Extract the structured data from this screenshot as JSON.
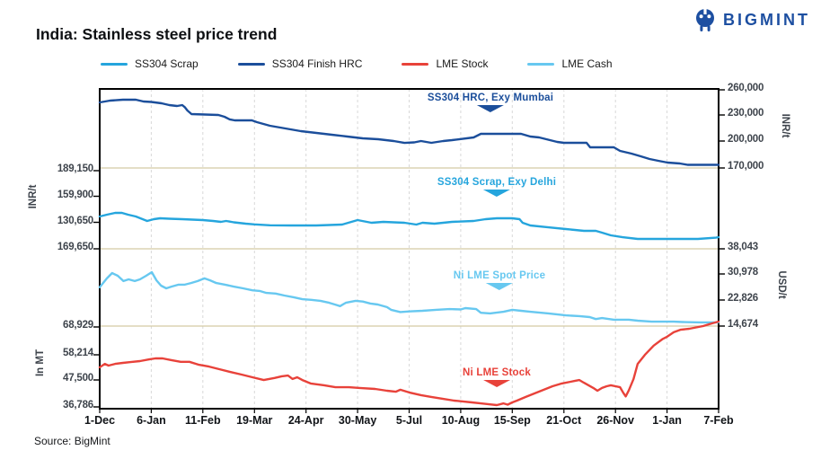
{
  "brand": {
    "name": "BIGMINT"
  },
  "title": "India: Stainless steel price trend",
  "source": "Source: BigMint",
  "colors": {
    "scrap": "#25a5dd",
    "hrc": "#1b4e9b",
    "stock": "#e8423a",
    "cash": "#67c8f0",
    "tan_gridline": "#d3cba4",
    "dashed_gridline": "#d8d8d8",
    "axis_text": "#3e444c"
  },
  "legend": [
    {
      "label": "SS304 Scrap",
      "color": "#25a5dd"
    },
    {
      "label": "SS304 Finish HRC",
      "color": "#1b4e9b"
    },
    {
      "label": "LME Stock",
      "color": "#e8423a"
    },
    {
      "label": "LME Cash",
      "color": "#67c8f0"
    }
  ],
  "chart_data": {
    "type": "line",
    "title": "India: Stainless steel price trend",
    "grid": {
      "vertical_dashed": true,
      "horizontal_tan_lines": 3
    },
    "x_tick_labels": [
      "1-Dec",
      "6-Jan",
      "11-Feb",
      "19-Mar",
      "24-Apr",
      "30-May",
      "5-Jul",
      "10-Aug",
      "15-Sep",
      "21-Oct",
      "26-Nov",
      "1-Jan",
      "7-Feb"
    ],
    "left_axis": {
      "ticks": [
        "189,150",
        "159,900",
        "130,650",
        "169,650",
        "68,929",
        "58,214",
        "47,500",
        "36,786"
      ],
      "unit_top": "INR/t",
      "unit_bottom": "In MT"
    },
    "right_axis": {
      "ticks": [
        "260,000",
        "230,000",
        "200,000",
        "170,000",
        "38,043",
        "30,978",
        "22,826",
        "14,674"
      ],
      "unit_top": "INR/t",
      "unit_bottom": "USD/t"
    },
    "axes": {
      "left_inr": {
        "unit": "INR/t",
        "side": "left",
        "tick_values": [
          189150,
          159900,
          130650
        ]
      },
      "left_mt": {
        "unit": "In MT",
        "side": "left",
        "tick_values": [
          68929,
          58214,
          47500,
          36786
        ]
      },
      "right_inr": {
        "unit": "INR/t",
        "side": "right",
        "tick_values": [
          260000,
          230000,
          200000,
          170000
        ]
      },
      "right_usd": {
        "unit": "USD/t",
        "side": "right",
        "tick_values": [
          38043,
          30978,
          22826,
          14674
        ]
      }
    },
    "annotations": [
      {
        "text": "SS304 HRC, Exy Mumbai",
        "color": "#1b4e9b"
      },
      {
        "text": "SS304 Scrap, Exy Delhi",
        "color": "#25a5dd"
      },
      {
        "text": "Ni LME Spot Price",
        "color": "#67c8f0"
      },
      {
        "text": "Ni LME Stock",
        "color": "#e8423a"
      }
    ],
    "series": [
      {
        "name": "SS304 Finish HRC",
        "axis": "right_inr",
        "color": "#1b4e9b",
        "points": [
          [
            0,
            245500
          ],
          [
            0.2,
            247600
          ],
          [
            0.45,
            248600
          ],
          [
            0.7,
            248600
          ],
          [
            0.85,
            246500
          ],
          [
            1.0,
            246000
          ],
          [
            1.2,
            244500
          ],
          [
            1.35,
            242400
          ],
          [
            1.5,
            241400
          ],
          [
            1.6,
            242400
          ],
          [
            1.65,
            240000
          ],
          [
            1.7,
            236200
          ],
          [
            1.78,
            232100
          ],
          [
            2.3,
            231000
          ],
          [
            2.42,
            229000
          ],
          [
            2.52,
            226000
          ],
          [
            2.62,
            224800
          ],
          [
            2.95,
            224800
          ],
          [
            3.05,
            222800
          ],
          [
            3.3,
            218600
          ],
          [
            3.6,
            215500
          ],
          [
            3.9,
            212400
          ],
          [
            4.2,
            210300
          ],
          [
            4.5,
            208300
          ],
          [
            4.8,
            206200
          ],
          [
            5.1,
            204100
          ],
          [
            5.4,
            203100
          ],
          [
            5.7,
            201000
          ],
          [
            5.91,
            198900
          ],
          [
            6.1,
            199500
          ],
          [
            6.23,
            201000
          ],
          [
            6.43,
            199000
          ],
          [
            6.66,
            201000
          ],
          [
            6.83,
            202100
          ],
          [
            7.25,
            205200
          ],
          [
            7.39,
            209300
          ],
          [
            8.17,
            209300
          ],
          [
            8.35,
            206200
          ],
          [
            8.52,
            205200
          ],
          [
            8.87,
            200000
          ],
          [
            9.0,
            199000
          ],
          [
            9.44,
            199000
          ],
          [
            9.51,
            193800
          ],
          [
            9.97,
            193800
          ],
          [
            10.09,
            189700
          ],
          [
            10.31,
            186600
          ],
          [
            10.49,
            183400
          ],
          [
            10.66,
            180300
          ],
          [
            10.83,
            178300
          ],
          [
            11.01,
            176200
          ],
          [
            11.25,
            175200
          ],
          [
            11.4,
            173600
          ],
          [
            12,
            173600
          ]
        ]
      },
      {
        "name": "SS304 Scrap",
        "axis": "left_inr",
        "color": "#25a5dd",
        "points": [
          [
            0,
            137300
          ],
          [
            0.14,
            139300
          ],
          [
            0.3,
            141300
          ],
          [
            0.43,
            141300
          ],
          [
            0.55,
            139300
          ],
          [
            0.7,
            137300
          ],
          [
            0.92,
            132200
          ],
          [
            1.05,
            134200
          ],
          [
            1.17,
            135200
          ],
          [
            1.35,
            134700
          ],
          [
            1.6,
            134200
          ],
          [
            1.8,
            133700
          ],
          [
            2.0,
            133200
          ],
          [
            2.2,
            132200
          ],
          [
            2.35,
            131200
          ],
          [
            2.45,
            132200
          ],
          [
            2.6,
            130600
          ],
          [
            2.83,
            129100
          ],
          [
            3.0,
            128300
          ],
          [
            3.3,
            127300
          ],
          [
            3.7,
            127100
          ],
          [
            4.2,
            127100
          ],
          [
            4.7,
            128100
          ],
          [
            5.0,
            133200
          ],
          [
            5.27,
            130100
          ],
          [
            5.5,
            131200
          ],
          [
            5.7,
            130600
          ],
          [
            5.91,
            130100
          ],
          [
            6.14,
            128100
          ],
          [
            6.26,
            130100
          ],
          [
            6.49,
            129100
          ],
          [
            6.83,
            131200
          ],
          [
            7.25,
            132200
          ],
          [
            7.48,
            134200
          ],
          [
            7.7,
            135200
          ],
          [
            8.0,
            135200
          ],
          [
            8.14,
            134200
          ],
          [
            8.2,
            130100
          ],
          [
            8.35,
            127100
          ],
          [
            8.7,
            125000
          ],
          [
            9.04,
            123000
          ],
          [
            9.39,
            121000
          ],
          [
            9.62,
            121000
          ],
          [
            9.74,
            119000
          ],
          [
            9.91,
            115900
          ],
          [
            10.14,
            113800
          ],
          [
            10.43,
            111800
          ],
          [
            11.0,
            111800
          ],
          [
            11.6,
            111800
          ],
          [
            11.95,
            113300
          ],
          [
            12,
            113800
          ]
        ]
      },
      {
        "name": "LME Cash",
        "axis": "right_usd",
        "color": "#67c8f0",
        "points": [
          [
            0,
            26400
          ],
          [
            0.14,
            29100
          ],
          [
            0.24,
            30700
          ],
          [
            0.35,
            29900
          ],
          [
            0.46,
            28300
          ],
          [
            0.56,
            28800
          ],
          [
            0.68,
            28300
          ],
          [
            0.78,
            28800
          ],
          [
            0.9,
            29900
          ],
          [
            1.01,
            30975
          ],
          [
            1.1,
            28500
          ],
          [
            1.19,
            26900
          ],
          [
            1.29,
            26100
          ],
          [
            1.39,
            26600
          ],
          [
            1.53,
            27200
          ],
          [
            1.65,
            27200
          ],
          [
            1.77,
            27700
          ],
          [
            1.9,
            28300
          ],
          [
            2.03,
            29100
          ],
          [
            2.14,
            28500
          ],
          [
            2.26,
            27700
          ],
          [
            2.43,
            27200
          ],
          [
            2.6,
            26600
          ],
          [
            2.78,
            26100
          ],
          [
            2.96,
            25500
          ],
          [
            3.1,
            25300
          ],
          [
            3.23,
            24700
          ],
          [
            3.41,
            24500
          ],
          [
            3.58,
            23900
          ],
          [
            3.76,
            23400
          ],
          [
            3.93,
            22800
          ],
          [
            4.1,
            22600
          ],
          [
            4.28,
            22300
          ],
          [
            4.45,
            21700
          ],
          [
            4.56,
            21200
          ],
          [
            4.66,
            20700
          ],
          [
            4.77,
            21700
          ],
          [
            4.96,
            22300
          ],
          [
            5.1,
            22100
          ],
          [
            5.25,
            21500
          ],
          [
            5.39,
            21200
          ],
          [
            5.57,
            20400
          ],
          [
            5.65,
            19600
          ],
          [
            5.83,
            18900
          ],
          [
            6.0,
            19100
          ],
          [
            6.26,
            19300
          ],
          [
            6.52,
            19600
          ],
          [
            6.78,
            19800
          ],
          [
            7.0,
            19700
          ],
          [
            7.09,
            20100
          ],
          [
            7.3,
            19800
          ],
          [
            7.39,
            18700
          ],
          [
            7.57,
            18500
          ],
          [
            7.83,
            19000
          ],
          [
            8.0,
            19600
          ],
          [
            8.17,
            19300
          ],
          [
            8.35,
            19000
          ],
          [
            8.7,
            18500
          ],
          [
            9.04,
            17900
          ],
          [
            9.3,
            17700
          ],
          [
            9.5,
            17400
          ],
          [
            9.62,
            16800
          ],
          [
            9.74,
            17100
          ],
          [
            9.97,
            16600
          ],
          [
            10.26,
            16600
          ],
          [
            10.43,
            16300
          ],
          [
            10.7,
            16000
          ],
          [
            11.13,
            16000
          ],
          [
            11.3,
            15900
          ],
          [
            11.65,
            15800
          ],
          [
            12,
            15800
          ]
        ]
      },
      {
        "name": "LME Stock",
        "axis": "left_mt",
        "color": "#e8423a",
        "points": [
          [
            0,
            52700
          ],
          [
            0.1,
            54100
          ],
          [
            0.17,
            53400
          ],
          [
            0.3,
            54100
          ],
          [
            0.45,
            54500
          ],
          [
            0.6,
            54800
          ],
          [
            0.78,
            55200
          ],
          [
            0.96,
            55900
          ],
          [
            1.08,
            56300
          ],
          [
            1.22,
            56300
          ],
          [
            1.39,
            55600
          ],
          [
            1.57,
            54900
          ],
          [
            1.74,
            54900
          ],
          [
            1.91,
            53800
          ],
          [
            2.12,
            53000
          ],
          [
            2.31,
            52000
          ],
          [
            2.52,
            50900
          ],
          [
            2.75,
            49800
          ],
          [
            2.96,
            48700
          ],
          [
            3.18,
            47600
          ],
          [
            3.39,
            48400
          ],
          [
            3.53,
            49100
          ],
          [
            3.65,
            49400
          ],
          [
            3.74,
            48000
          ],
          [
            3.83,
            48700
          ],
          [
            3.93,
            47600
          ],
          [
            4.09,
            46200
          ],
          [
            4.35,
            45500
          ],
          [
            4.57,
            44700
          ],
          [
            4.83,
            44700
          ],
          [
            5.04,
            44400
          ],
          [
            5.34,
            44000
          ],
          [
            5.57,
            43300
          ],
          [
            5.74,
            42900
          ],
          [
            5.83,
            43700
          ],
          [
            6.0,
            42600
          ],
          [
            6.23,
            41500
          ],
          [
            6.43,
            40800
          ],
          [
            6.66,
            40000
          ],
          [
            6.87,
            39300
          ],
          [
            7.04,
            39000
          ],
          [
            7.22,
            38600
          ],
          [
            7.39,
            38200
          ],
          [
            7.53,
            37900
          ],
          [
            7.7,
            37500
          ],
          [
            7.83,
            38200
          ],
          [
            7.91,
            37700
          ],
          [
            8.0,
            38600
          ],
          [
            8.09,
            39300
          ],
          [
            8.26,
            40800
          ],
          [
            8.43,
            42200
          ],
          [
            8.61,
            43700
          ],
          [
            8.78,
            45100
          ],
          [
            8.96,
            46200
          ],
          [
            9.13,
            46900
          ],
          [
            9.22,
            47300
          ],
          [
            9.3,
            47600
          ],
          [
            9.39,
            46500
          ],
          [
            9.57,
            44400
          ],
          [
            9.65,
            43300
          ],
          [
            9.74,
            44400
          ],
          [
            9.83,
            45100
          ],
          [
            9.91,
            45500
          ],
          [
            10.0,
            45100
          ],
          [
            10.09,
            44700
          ],
          [
            10.15,
            42500
          ],
          [
            10.2,
            41000
          ],
          [
            10.26,
            43500
          ],
          [
            10.35,
            48000
          ],
          [
            10.43,
            54100
          ],
          [
            10.57,
            57700
          ],
          [
            10.74,
            61400
          ],
          [
            10.91,
            64000
          ],
          [
            11.0,
            65000
          ],
          [
            11.13,
            66800
          ],
          [
            11.26,
            67800
          ],
          [
            11.43,
            68200
          ],
          [
            11.7,
            69300
          ],
          [
            11.88,
            70400
          ],
          [
            12,
            71100
          ]
        ]
      }
    ]
  }
}
